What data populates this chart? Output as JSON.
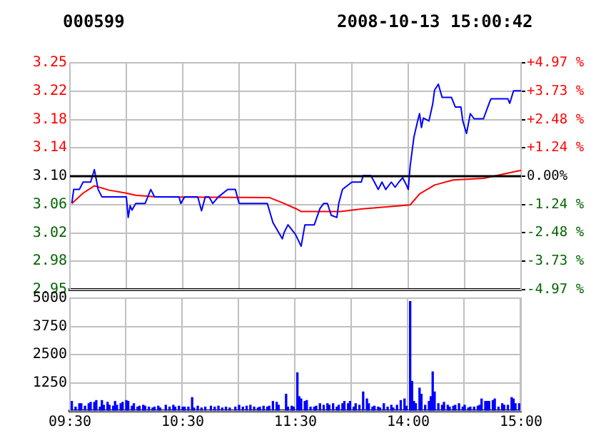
{
  "chart_data": [
    {
      "type": "line",
      "title": "000599",
      "subtitle": "2008-10-13 15:00:42",
      "categories": [
        null,
        null,
        null,
        null,
        null,
        null,
        null,
        null,
        null,
        null,
        null,
        null,
        null,
        null,
        null,
        null,
        null,
        null,
        null,
        null,
        null,
        null,
        null,
        null,
        null,
        null,
        null,
        null,
        null,
        null,
        null,
        null,
        null,
        null,
        null,
        null,
        null,
        null,
        null,
        null,
        null,
        null,
        null,
        null,
        null,
        null,
        null,
        null,
        null,
        null,
        null,
        null,
        null,
        null,
        null,
        null,
        null,
        null,
        null,
        null,
        null,
        null,
        null,
        null,
        null,
        null,
        null,
        null,
        null,
        null,
        null,
        null,
        null,
        null,
        null,
        null,
        null,
        null,
        null,
        null,
        null,
        null,
        null,
        null,
        null,
        null,
        null,
        null,
        null,
        null,
        null,
        null,
        null,
        null,
        null,
        null,
        null,
        null,
        null,
        null,
        null,
        null,
        null,
        null,
        null,
        null,
        null,
        null,
        null,
        null,
        null,
        null,
        null,
        null,
        null,
        null,
        null,
        null,
        null,
        null,
        null,
        null,
        null,
        null,
        null,
        null,
        null,
        null,
        null,
        null,
        null,
        null,
        null,
        null,
        null,
        null,
        null,
        null,
        null,
        null,
        null,
        null,
        null,
        null,
        null,
        null,
        null,
        null,
        null,
        null,
        null,
        null,
        null,
        null,
        null,
        null,
        null,
        null,
        null,
        null,
        null,
        null,
        null,
        null,
        null,
        null,
        null,
        null,
        null,
        null,
        null,
        null,
        null,
        null,
        null,
        null,
        null,
        null,
        null,
        null,
        null,
        null,
        null,
        null,
        null,
        null,
        null,
        null,
        null,
        null,
        null,
        null,
        null,
        null,
        null,
        null,
        null,
        null,
        null,
        null,
        null,
        null,
        null,
        null,
        null,
        null,
        null,
        null,
        null,
        null,
        null,
        null,
        null,
        null,
        null,
        null,
        null,
        null,
        null,
        null,
        null,
        null,
        null,
        null,
        null,
        null,
        null,
        null,
        null,
        null,
        null,
        null,
        null,
        null,
        null,
        null,
        null,
        null,
        null,
        null,
        null
      ],
      "ylim": [
        2.946,
        3.254
      ],
      "yticks": [
        {
          "value": 2.946,
          "label": "2.95"
        },
        {
          "value": 2.9845,
          "label": "2.98"
        },
        {
          "value": 3.023,
          "label": "3.02"
        },
        {
          "value": 3.0615,
          "label": "3.06"
        },
        {
          "value": 3.1,
          "label": "3.10"
        },
        {
          "value": 3.1385,
          "label": "3.14"
        },
        {
          "value": 3.177,
          "label": "3.18"
        },
        {
          "value": 3.2155,
          "label": "3.22"
        },
        {
          "value": 3.254,
          "label": "3.25"
        }
      ],
      "y2lim": [
        -4.97,
        4.97
      ],
      "y2ticks": [
        {
          "value": -4.97,
          "label": "-4.97 %"
        },
        {
          "value": -3.73,
          "label": "-3.73 %"
        },
        {
          "value": -2.48,
          "label": "-2.48 %"
        },
        {
          "value": -1.24,
          "label": "-1.24 %"
        },
        {
          "value": 0,
          "label": "0.00%"
        },
        {
          "value": 1.24,
          "label": "+1.24 %"
        },
        {
          "value": 2.48,
          "label": "+2.48 %"
        },
        {
          "value": 3.73,
          "label": "+3.73 %"
        },
        {
          "value": 4.97,
          "label": "+4.97 %"
        }
      ],
      "ref_lines": [
        {
          "axis": "y",
          "value": 3.1,
          "color": "#000000"
        }
      ],
      "series": [
        {
          "color": "#0000ff",
          "values": [
            null,
            3.063,
            3.082,
            null,
            null,
            3.082,
            null,
            3.092,
            null,
            null,
            null,
            3.092,
            null,
            3.109,
            null,
            3.082,
            null,
            3.072,
            null,
            null,
            null,
            null,
            null,
            null,
            null,
            null,
            null,
            null,
            null,
            null,
            3.072,
            3.044,
            3.06,
            3.054,
            null,
            3.063,
            null,
            null,
            null,
            null,
            3.063,
            null,
            null,
            3.082,
            null,
            3.072,
            null,
            null,
            null,
            null,
            null,
            null,
            null,
            null,
            null,
            null,
            null,
            null,
            3.072,
            3.063,
            null,
            3.072,
            null,
            null,
            null,
            null,
            null,
            null,
            3.072,
            null,
            3.053,
            null,
            3.072,
            null,
            3.072,
            null,
            3.063,
            null,
            null,
            3.072,
            null,
            null,
            null,
            null,
            3.082,
            null,
            null,
            null,
            3.082,
            null,
            3.063,
            null,
            null,
            null,
            null,
            null,
            null,
            null,
            null,
            null,
            null,
            null,
            null,
            null,
            null,
            3.063,
            null,
            null,
            3.037,
            null,
            null,
            null,
            null,
            3.015,
            3.024,
            null,
            3.034,
            null,
            null,
            null,
            3.021,
            null,
            null,
            3.005,
            null,
            3.034,
            null,
            null,
            null,
            null,
            3.034,
            null,
            null,
            3.056,
            null,
            3.063,
            null,
            3.063,
            null,
            3.047,
            null,
            null,
            3.044,
            3.063,
            null,
            3.082,
            null,
            null,
            null,
            null,
            3.092,
            null,
            null,
            null,
            null,
            3.092,
            3.101,
            null,
            null,
            null,
            3.101,
            null,
            3.092,
            null,
            3.082,
            null,
            3.092,
            null,
            3.082,
            null,
            null,
            3.092,
            null,
            3.085,
            null,
            3.092,
            null,
            3.098,
            null,
            3.088,
            3.082,
            3.114,
            null,
            3.153,
            null,
            3.175,
            3.185,
            3.166,
            3.179,
            null,
            null,
            3.175,
            null,
            3.198,
            3.217,
            null,
            3.225,
            null,
            3.207,
            null,
            null,
            null,
            null,
            3.207,
            null,
            3.194,
            null,
            null,
            3.194,
            3.175,
            null,
            3.158,
            null,
            3.185,
            null,
            3.178,
            null,
            null,
            null,
            null,
            3.178,
            null,
            null,
            3.199,
            3.205,
            null,
            null,
            null,
            null,
            null,
            null,
            null,
            null,
            3.205,
            3.199,
            null,
            3.216,
            null,
            null,
            null,
            3.216
          ]
        },
        {
          "color": "#ff0000",
          "values": [
            null,
            3.063,
            null,
            null,
            null,
            null,
            null,
            3.077,
            null,
            null,
            null,
            null,
            null,
            3.087,
            null,
            null,
            null,
            null,
            null,
            null,
            null,
            3.081,
            null,
            null,
            null,
            null,
            null,
            null,
            null,
            null,
            3.077,
            null,
            null,
            null,
            null,
            3.074,
            null,
            null,
            null,
            null,
            null,
            null,
            null,
            null,
            null,
            null,
            3.072,
            null,
            null,
            null,
            null,
            null,
            null,
            null,
            null,
            null,
            null,
            null,
            null,
            null,
            null,
            null,
            null,
            null,
            null,
            null,
            null,
            null,
            null,
            null,
            null,
            null,
            null,
            null,
            null,
            null,
            null,
            null,
            null,
            null,
            null,
            null,
            null,
            null,
            null,
            null,
            null,
            null,
            null,
            null,
            null,
            null,
            null,
            null,
            null,
            null,
            null,
            null,
            null,
            null,
            null,
            null,
            null,
            null,
            null,
            null,
            3.071,
            null,
            null,
            null,
            null,
            null,
            null,
            3.064,
            null,
            null,
            null,
            null,
            null,
            null,
            null,
            3.055,
            null,
            3.052,
            null,
            null,
            null,
            null,
            null,
            null,
            null,
            null,
            null,
            null,
            null,
            null,
            null,
            null,
            null,
            null,
            null,
            null,
            null,
            null,
            3.052,
            null,
            null,
            null,
            null,
            null,
            null,
            null,
            null,
            null,
            null,
            null,
            null,
            3.056,
            null,
            null,
            null,
            null,
            null,
            null,
            null,
            null,
            null,
            null,
            null,
            null,
            null,
            null,
            null,
            null,
            null,
            null,
            null,
            null,
            null,
            null,
            null,
            3.061,
            null,
            null,
            null,
            null,
            3.076,
            null,
            null,
            null,
            null,
            null,
            null,
            null,
            3.088,
            null,
            null,
            null,
            null,
            null,
            null,
            null,
            null,
            null,
            3.095,
            null,
            null,
            null,
            null,
            null,
            null,
            null,
            null,
            null,
            null,
            null,
            null,
            null,
            null,
            null,
            3.097,
            null,
            null,
            null,
            null,
            null,
            null,
            null,
            null,
            null,
            null,
            null,
            null,
            null,
            null,
            null,
            null,
            null,
            null,
            null,
            3.108
          ]
        }
      ],
      "grid": true,
      "legend": false,
      "marker": "none",
      "line_style": "solid",
      "tick_labels": "y"
    },
    {
      "type": "bar",
      "categories": [
        "09:30",
        null,
        null,
        null,
        null,
        null,
        null,
        null,
        null,
        null,
        null,
        null,
        null,
        null,
        null,
        null,
        null,
        null,
        null,
        null,
        null,
        null,
        null,
        null,
        null,
        null,
        null,
        null,
        null,
        null,
        null,
        null,
        null,
        null,
        null,
        null,
        null,
        null,
        null,
        null,
        null,
        null,
        null,
        null,
        null,
        null,
        null,
        null,
        null,
        null,
        null,
        null,
        null,
        null,
        null,
        null,
        null,
        null,
        null,
        null,
        "10:30",
        null,
        null,
        null,
        null,
        null,
        null,
        null,
        null,
        null,
        null,
        null,
        null,
        null,
        null,
        null,
        null,
        null,
        null,
        null,
        null,
        null,
        null,
        null,
        null,
        null,
        null,
        null,
        null,
        null,
        null,
        null,
        null,
        null,
        null,
        null,
        null,
        null,
        null,
        null,
        null,
        null,
        null,
        null,
        null,
        null,
        null,
        null,
        null,
        null,
        null,
        null,
        null,
        null,
        null,
        null,
        null,
        null,
        null,
        null,
        "11:30",
        null,
        null,
        null,
        null,
        null,
        null,
        null,
        null,
        null,
        null,
        null,
        null,
        null,
        null,
        null,
        null,
        null,
        null,
        null,
        null,
        null,
        null,
        null,
        null,
        null,
        null,
        null,
        null,
        null,
        null,
        null,
        null,
        null,
        null,
        null,
        null,
        null,
        null,
        null,
        null,
        null,
        null,
        null,
        null,
        null,
        null,
        null,
        null,
        null,
        null,
        null,
        null,
        null,
        null,
        null,
        null,
        null,
        null,
        null,
        "14:00",
        null,
        null,
        null,
        null,
        null,
        null,
        null,
        null,
        null,
        null,
        null,
        null,
        null,
        null,
        null,
        null,
        null,
        null,
        null,
        null,
        null,
        null,
        null,
        null,
        null,
        null,
        null,
        null,
        null,
        null,
        null,
        null,
        null,
        null,
        null,
        null,
        null,
        null,
        null,
        null,
        null,
        null,
        null,
        null,
        null,
        null,
        null,
        null,
        null,
        null,
        null,
        null,
        null,
        null,
        null,
        null,
        null,
        null,
        null,
        "15:00"
      ],
      "ylim": [
        0,
        5000
      ],
      "yticks": [
        {
          "value": 0,
          "label": null
        },
        1250,
        2500,
        3750,
        5000
      ],
      "series": [
        {
          "color": "#0000ff",
          "values": [
            null,
            420,
            null,
            170,
            null,
            320,
            320,
            null,
            210,
            null,
            320,
            380,
            null,
            380,
            460,
            null,
            170,
            460,
            250,
            null,
            380,
            250,
            null,
            210,
            420,
            250,
            null,
            320,
            380,
            null,
            460,
            420,
            null,
            210,
            320,
            null,
            170,
            210,
            null,
            250,
            210,
            null,
            170,
            null,
            130,
            170,
            null,
            210,
            130,
            null,
            null,
            250,
            null,
            170,
            null,
            250,
            170,
            null,
            210,
            null,
            170,
            170,
            null,
            170,
            null,
            590,
            130,
            null,
            210,
            null,
            130,
            null,
            170,
            null,
            null,
            210,
            null,
            170,
            null,
            210,
            null,
            130,
            null,
            170,
            null,
            130,
            null,
            null,
            170,
            null,
            250,
            null,
            170,
            null,
            210,
            null,
            250,
            null,
            170,
            null,
            130,
            170,
            null,
            210,
            null,
            170,
            210,
            null,
            420,
            null,
            380,
            250,
            null,
            null,
            null,
            740,
            170,
            null,
            210,
            170,
            null,
            1690,
            630,
            530,
            null,
            420,
            460,
            null,
            170,
            null,
            170,
            210,
            null,
            320,
            null,
            250,
            null,
            320,
            250,
            null,
            320,
            null,
            170,
            250,
            null,
            320,
            420,
            null,
            320,
            420,
            null,
            170,
            320,
            null,
            250,
            null,
            840,
            null,
            530,
            320,
            null,
            170,
            210,
            null,
            170,
            130,
            null,
            320,
            null,
            170,
            null,
            250,
            130,
            null,
            250,
            null,
            460,
            null,
            530,
            210,
            null,
            4850,
            1310,
            420,
            320,
            null,
            1010,
            740,
            null,
            250,
            null,
            420,
            630,
            1730,
            840,
            null,
            320,
            null,
            250,
            380,
            null,
            250,
            170,
            null,
            210,
            250,
            null,
            320,
            null,
            170,
            250,
            null,
            130,
            170,
            null,
            170,
            null,
            210,
            250,
            530,
            null,
            420,
            420,
            420,
            null,
            460,
            530,
            null,
            170,
            null,
            320,
            250,
            null,
            250,
            null,
            590,
            530,
            320,
            null,
            320,
            null
          ]
        }
      ],
      "grid": true,
      "legend": false
    }
  ]
}
